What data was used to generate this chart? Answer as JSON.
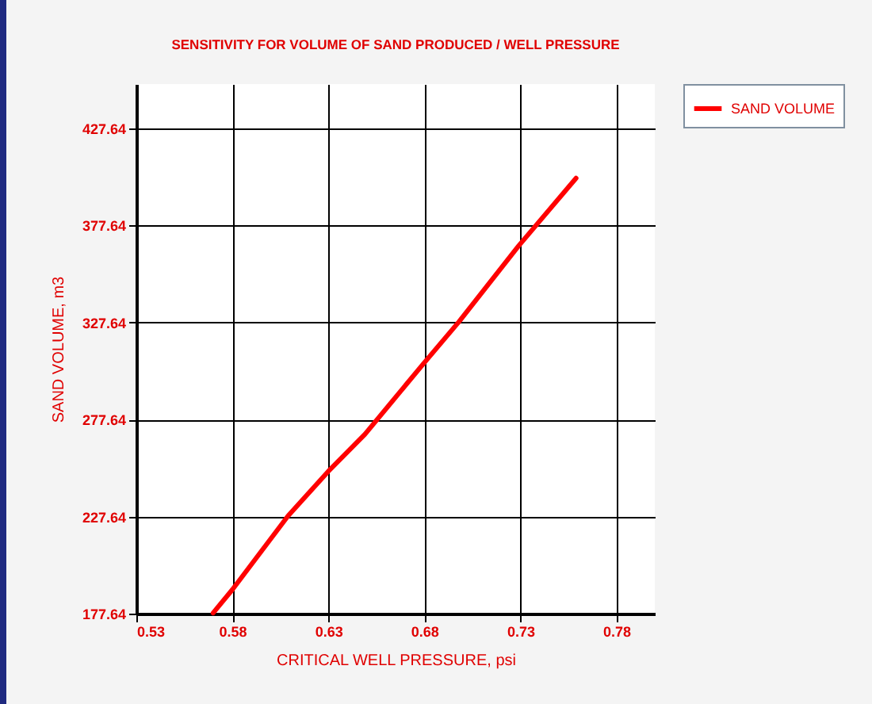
{
  "chart_data": {
    "type": "line",
    "title": "SENSITIVITY FOR VOLUME OF SAND PRODUCED / WELL PRESSURE",
    "xlabel": "CRITICAL WELL PRESSURE, psi",
    "ylabel": "SAND VOLUME, m3",
    "x": [
      0.57,
      0.58,
      0.609,
      0.63,
      0.649,
      0.68,
      0.698,
      0.729,
      0.741,
      0.759
    ],
    "series": [
      {
        "name": "SAND VOLUME",
        "color": "#ff0000",
        "values": [
          178,
          190,
          228,
          251,
          270,
          307,
          328,
          367,
          381,
          402
        ]
      }
    ],
    "xlim": [
      0.53,
      0.8
    ],
    "xticks": [
      0.53,
      0.58,
      0.63,
      0.68,
      0.73,
      0.78
    ],
    "ylim": [
      177.64,
      450.5
    ],
    "yticks": [
      177.64,
      227.64,
      277.64,
      327.64,
      377.64,
      427.64
    ],
    "grid": true,
    "legend": "top right",
    "marker": "none",
    "line_style": "solid"
  }
}
